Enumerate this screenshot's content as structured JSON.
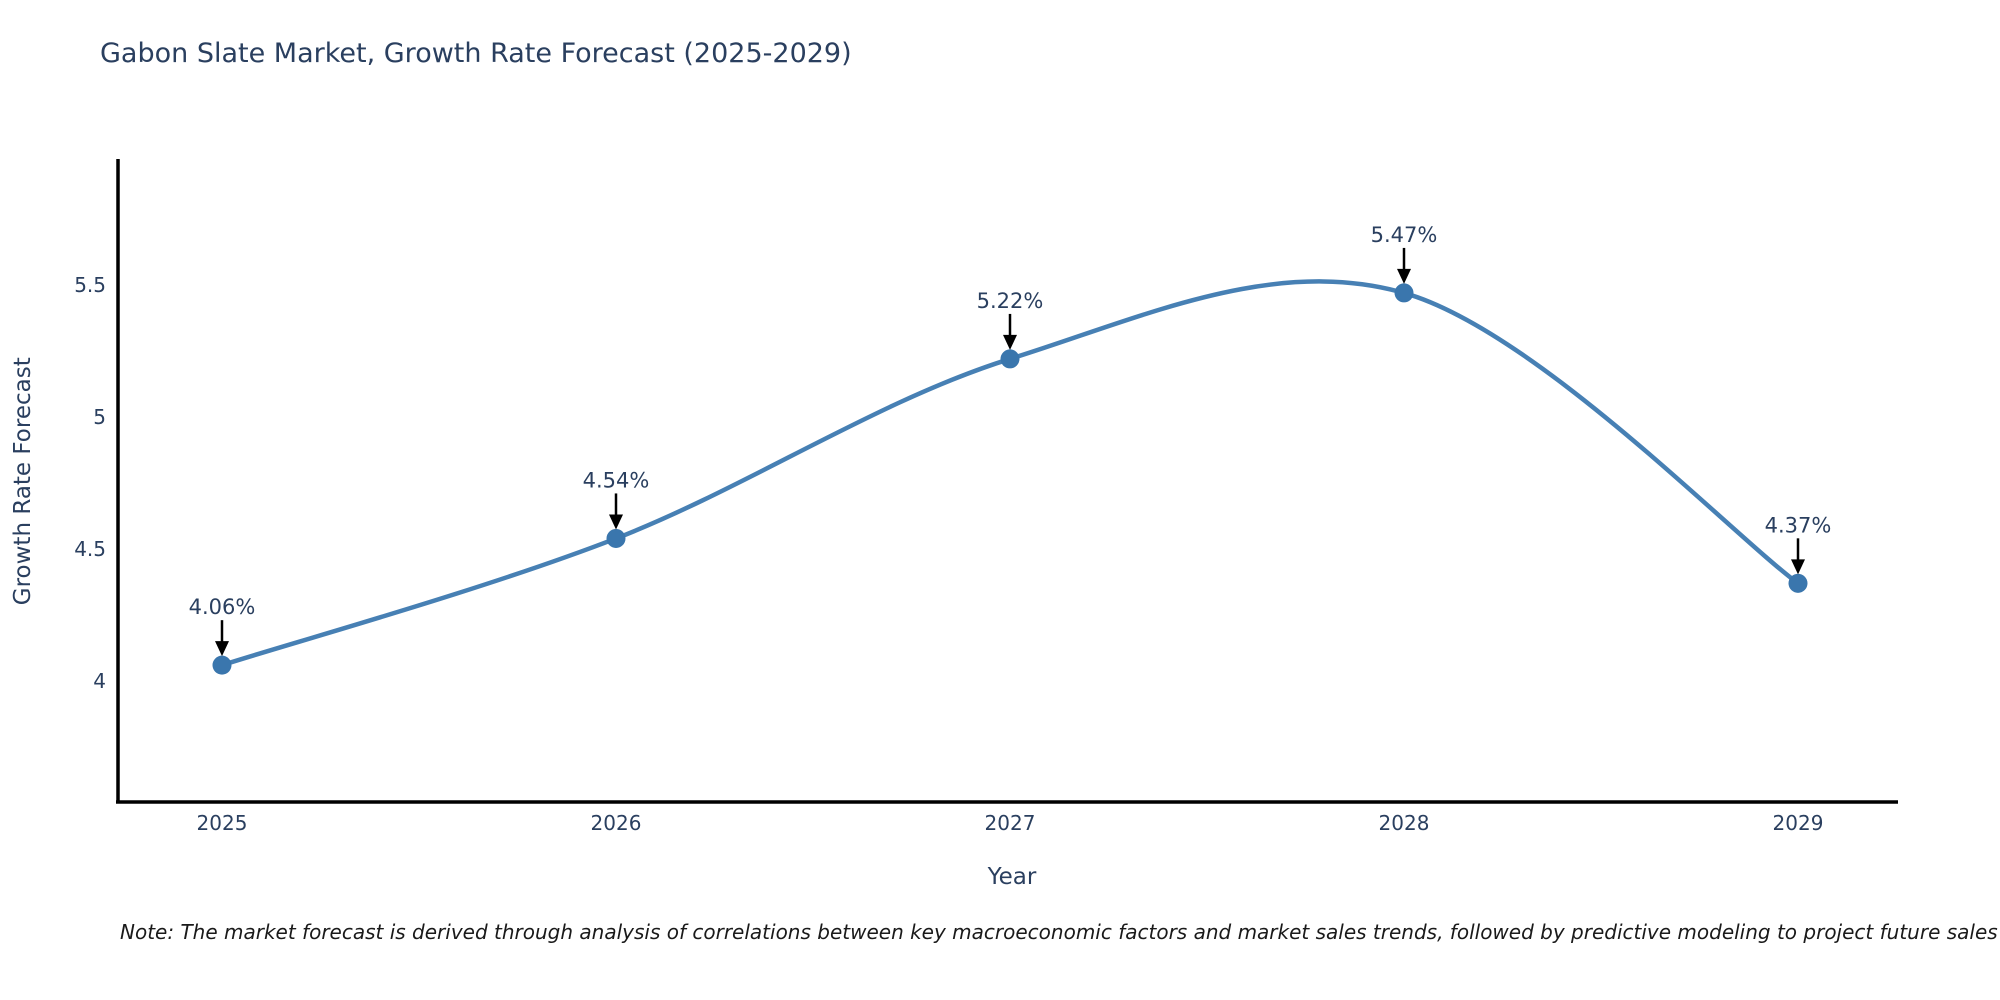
{
  "title": "Gabon Slate Market, Growth Rate Forecast (2025-2029)",
  "note": "Note: The market forecast is derived through analysis of correlations between key macroeconomic factors and market sales trends, followed by predictive modeling to project future sales",
  "colors": {
    "title_text": "#2a3f5f",
    "tick_text": "#2a3f5f",
    "axis_line": "#000000",
    "series_line": "#4780b4",
    "marker_fill": "#3a76ad",
    "annotation_text": "#2a3f5f",
    "annotation_arrow": "#000000",
    "background": "#ffffff"
  },
  "chart_data": {
    "type": "line",
    "title": "Gabon Slate Market, Growth Rate Forecast (2025-2029)",
    "xlabel": "Year",
    "ylabel": "Growth Rate Forecast",
    "x": [
      2025,
      2026,
      2027,
      2028,
      2029
    ],
    "series": [
      {
        "name": "Growth Rate Forecast",
        "values": [
          4.06,
          4.54,
          5.22,
          5.47,
          4.37
        ],
        "point_labels": [
          "4.06%",
          "4.54%",
          "5.22%",
          "5.47%",
          "4.37%"
        ]
      }
    ],
    "xticks": [
      "2025",
      "2026",
      "2027",
      "2028",
      "2029"
    ],
    "yticks": [
      4,
      4.5,
      5,
      5.5
    ],
    "ytick_labels": [
      "4",
      "4.5",
      "5",
      "5.5"
    ],
    "ylim": [
      3.55,
      6.0
    ],
    "line_shape": "spline",
    "markers": true,
    "grid": false,
    "legend": "none",
    "annotations": "value labels with downward arrows above each point"
  }
}
